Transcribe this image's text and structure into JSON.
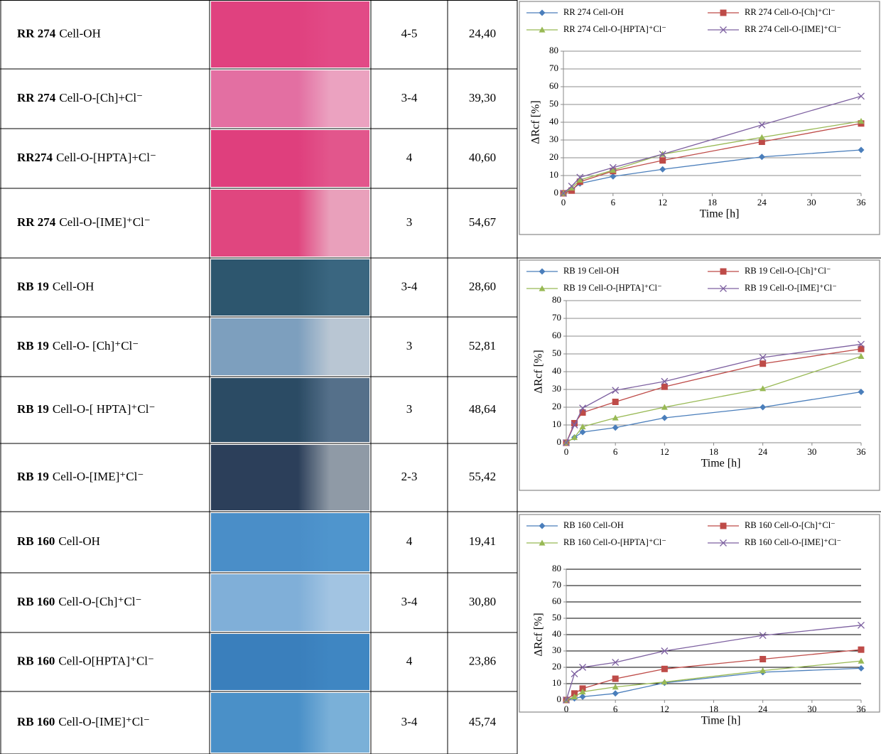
{
  "table": {
    "rows": [
      {
        "dye": "RR 274",
        "fabric": "Cell-OH",
        "grade": "4-5",
        "value": "24,40"
      },
      {
        "dye": "RR 274",
        "fabric": "Cell-O-[Ch]+Cl⁻",
        "grade": "3-4",
        "value": "39,30"
      },
      {
        "dye": "RR274",
        "fabric": "Cell-O-[HPTA]+Cl⁻",
        "grade": "4",
        "value": "40,60"
      },
      {
        "dye": "RR 274",
        "fabric": "Cell-O-[IME]⁺Cl⁻",
        "grade": "3",
        "value": "54,67"
      },
      {
        "dye": "RB 19",
        "fabric": "Cell-OH",
        "grade": "3-4",
        "value": "28,60"
      },
      {
        "dye": "RB 19",
        "fabric": "Cell-O- [Ch]⁺Cl⁻",
        "grade": "3",
        "value": "52,81"
      },
      {
        "dye": "RB 19",
        "fabric": "Cell-O-[ HPTA]⁺Cl⁻",
        "grade": "3",
        "value": "48,64"
      },
      {
        "dye": "RB 19",
        "fabric": "Cell-O-[IME]⁺Cl⁻",
        "grade": "2-3",
        "value": "55,42"
      },
      {
        "dye": "RB 160",
        "fabric": "Cell-OH",
        "grade": "4",
        "value": "19,41"
      },
      {
        "dye": "RB 160",
        "fabric": "Cell-O-[Ch]⁺Cl⁻",
        "grade": "3-4",
        "value": "30,80"
      },
      {
        "dye": "RB 160",
        "fabric": "Cell-O[HPTA]⁺Cl⁻",
        "grade": "4",
        "value": "23,86"
      },
      {
        "dye": "RB 160",
        "fabric": "Cell-O-[IME]⁺Cl⁻",
        "grade": "3-4",
        "value": "45,74"
      }
    ]
  },
  "chart_data": [
    {
      "type": "line",
      "x_label": "Time [h]",
      "y_label": "ΔRcf [%]",
      "x": [
        0,
        1,
        2,
        6,
        12,
        24,
        36
      ],
      "xlim": [
        0,
        36
      ],
      "xticks": [
        0,
        6,
        12,
        18,
        24,
        30,
        36
      ],
      "ylim": [
        0,
        80
      ],
      "yticks": [
        0,
        10,
        20,
        30,
        40,
        50,
        60,
        70,
        80
      ],
      "grid": true,
      "grid_color": "#8c8c8c",
      "series": [
        {
          "name": "RR 274 Cell-OH",
          "color": "#4a7ebb",
          "marker": "diamond",
          "values": [
            0,
            2,
            5.5,
            9.5,
            13.5,
            20.5,
            24.4
          ]
        },
        {
          "name": "RR 274 Cell-O-[Ch]⁺Cl⁻",
          "color": "#be4b48",
          "marker": "square",
          "values": [
            0,
            1.5,
            6.5,
            12.5,
            18.5,
            29,
            39.3
          ]
        },
        {
          "name": "RR 274 Cell-O-[HPTA]⁺Cl⁻",
          "color": "#98b954",
          "marker": "triangle",
          "values": [
            0,
            3,
            7.5,
            13,
            22,
            31.5,
            40.6
          ]
        },
        {
          "name": "RR 274 Cell-O-[IME]⁺Cl⁻",
          "color": "#7d60a0",
          "marker": "x",
          "values": [
            0,
            4,
            9,
            14.5,
            22,
            38.5,
            54.67
          ]
        }
      ]
    },
    {
      "type": "line",
      "x_label": "Time [h]",
      "y_label": "ΔRcf [%]",
      "x": [
        0,
        1,
        2,
        6,
        12,
        24,
        36
      ],
      "xlim": [
        0,
        36
      ],
      "xticks": [
        0,
        6,
        12,
        18,
        24,
        30,
        36
      ],
      "ylim": [
        0,
        80
      ],
      "yticks": [
        0,
        10,
        20,
        30,
        40,
        50,
        60,
        70,
        80
      ],
      "grid": true,
      "grid_color": "#8c8c8c",
      "series": [
        {
          "name": "RB 19 Cell-OH",
          "color": "#4a7ebb",
          "marker": "diamond",
          "values": [
            0,
            3,
            6,
            8.5,
            14,
            20,
            28.6
          ]
        },
        {
          "name": "RB 19 Cell-O-[Ch]⁺Cl⁻",
          "color": "#be4b48",
          "marker": "square",
          "values": [
            0,
            11,
            17,
            23,
            31.5,
            44.5,
            52.81
          ]
        },
        {
          "name": "RB 19 Cell-O-[HPTA]⁺Cl⁻",
          "color": "#98b954",
          "marker": "triangle",
          "values": [
            0,
            3,
            9,
            14,
            20,
            30.5,
            48.64
          ]
        },
        {
          "name": "RB 19 Cell-O-[IME]⁺Cl⁻",
          "color": "#7d60a0",
          "marker": "x",
          "values": [
            0,
            10,
            19.5,
            29.5,
            34.5,
            48,
            55.42
          ]
        }
      ]
    },
    {
      "type": "line",
      "x_label": "Time [h]",
      "y_label": "ΔRcf [%]",
      "x": [
        0,
        1,
        2,
        6,
        12,
        24,
        36
      ],
      "xlim": [
        0,
        36
      ],
      "xticks": [
        0,
        6,
        12,
        18,
        24,
        30,
        36
      ],
      "ylim": [
        0,
        80
      ],
      "yticks": [
        0,
        10,
        20,
        30,
        40,
        50,
        60,
        70,
        80
      ],
      "grid": true,
      "grid_color": "#000000",
      "series": [
        {
          "name": "RB 160 Cell-OH",
          "color": "#4a7ebb",
          "marker": "diamond",
          "values": [
            0,
            1,
            2,
            4,
            10.5,
            17,
            19.41
          ]
        },
        {
          "name": "RB 160 Cell-O-[Ch]⁺Cl⁻",
          "color": "#be4b48",
          "marker": "square",
          "values": [
            0,
            4,
            7,
            13,
            19,
            25,
            30.8
          ]
        },
        {
          "name": "RB 160 Cell-O-[HPTA]⁺Cl⁻",
          "color": "#98b954",
          "marker": "triangle",
          "values": [
            0,
            2,
            5,
            8,
            11,
            18,
            23.86
          ]
        },
        {
          "name": "RB 160 Cell-O-[IME]⁺Cl⁻",
          "color": "#7d60a0",
          "marker": "x",
          "values": [
            0,
            16,
            20,
            23,
            30,
            39.5,
            45.74
          ]
        }
      ]
    }
  ]
}
